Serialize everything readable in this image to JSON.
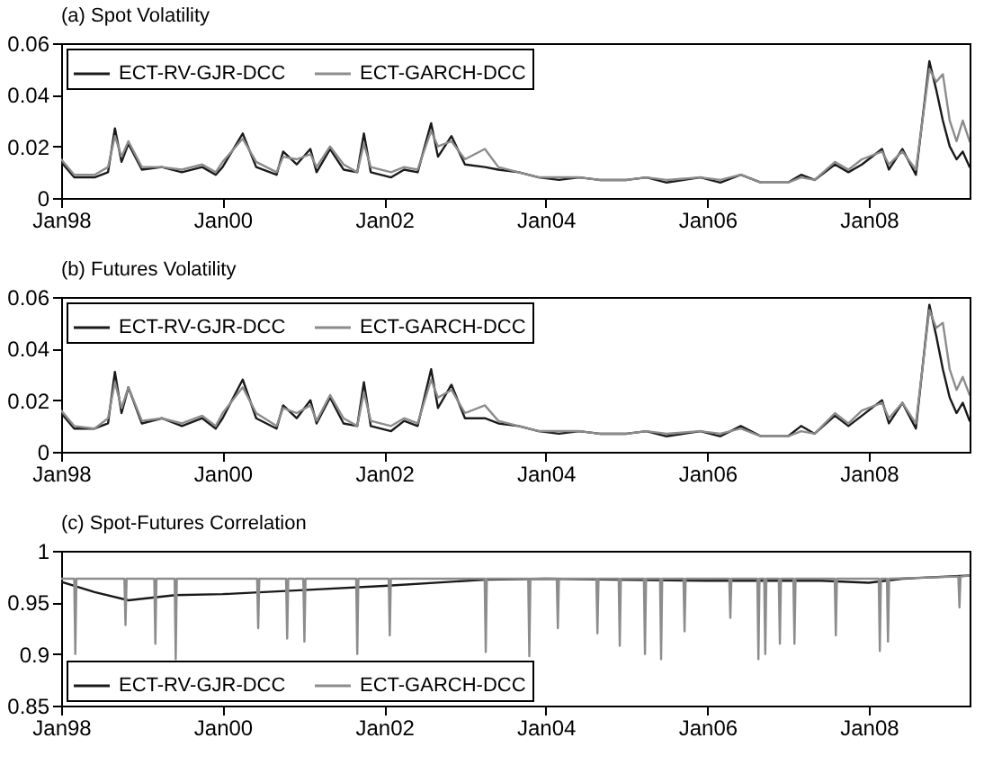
{
  "chart_data": [
    {
      "type": "line",
      "title": "(a) Spot Volatility",
      "legend": "top left",
      "x": [
        "1998-01",
        "1998-03",
        "1998-06",
        "1998-08",
        "1998-09",
        "1998-10",
        "1998-11",
        "1999-01",
        "1999-04",
        "1999-07",
        "1999-10",
        "1999-12",
        "2000-01",
        "2000-04",
        "2000-06",
        "2000-09",
        "2000-10",
        "2000-12",
        "2001-02",
        "2001-03",
        "2001-05",
        "2001-07",
        "2001-09",
        "2001-10",
        "2001-11",
        "2002-02",
        "2002-04",
        "2002-06",
        "2002-08",
        "2002-09",
        "2002-11",
        "2003-01",
        "2003-04",
        "2003-06",
        "2003-09",
        "2003-12",
        "2004-03",
        "2004-06",
        "2004-09",
        "2005-01",
        "2005-04",
        "2005-07",
        "2005-12",
        "2006-03",
        "2006-06",
        "2006-09",
        "2007-01",
        "2007-03",
        "2007-05",
        "2007-08",
        "2007-10",
        "2007-12",
        "2008-03",
        "2008-04",
        "2008-06",
        "2008-08",
        "2008-10",
        "2008-11",
        "2008-12",
        "2009-01",
        "2009-02",
        "2009-03",
        "2009-04"
      ],
      "series": [
        {
          "name": "ECT-RV-GJR-DCC",
          "color": "#1a1a1a",
          "values": [
            0.014,
            0.008,
            0.008,
            0.01,
            0.027,
            0.014,
            0.021,
            0.011,
            0.012,
            0.01,
            0.012,
            0.009,
            0.012,
            0.025,
            0.012,
            0.009,
            0.018,
            0.013,
            0.019,
            0.01,
            0.019,
            0.011,
            0.01,
            0.025,
            0.01,
            0.008,
            0.011,
            0.01,
            0.029,
            0.016,
            0.024,
            0.013,
            0.012,
            0.011,
            0.01,
            0.008,
            0.007,
            0.008,
            0.007,
            0.007,
            0.008,
            0.006,
            0.008,
            0.006,
            0.009,
            0.006,
            0.006,
            0.009,
            0.007,
            0.013,
            0.01,
            0.013,
            0.019,
            0.011,
            0.019,
            0.009,
            0.053,
            0.042,
            0.03,
            0.02,
            0.015,
            0.018,
            0.012
          ]
        },
        {
          "name": "ECT-GARCH-DCC",
          "color": "#8c8c8c",
          "values": [
            0.015,
            0.009,
            0.009,
            0.012,
            0.024,
            0.016,
            0.022,
            0.012,
            0.012,
            0.011,
            0.013,
            0.01,
            0.014,
            0.023,
            0.014,
            0.01,
            0.016,
            0.015,
            0.017,
            0.012,
            0.02,
            0.013,
            0.01,
            0.021,
            0.012,
            0.01,
            0.012,
            0.011,
            0.026,
            0.02,
            0.022,
            0.015,
            0.019,
            0.012,
            0.01,
            0.008,
            0.008,
            0.008,
            0.007,
            0.007,
            0.008,
            0.007,
            0.008,
            0.007,
            0.009,
            0.006,
            0.006,
            0.008,
            0.007,
            0.014,
            0.011,
            0.015,
            0.018,
            0.013,
            0.018,
            0.011,
            0.05,
            0.045,
            0.048,
            0.03,
            0.022,
            0.03,
            0.022
          ]
        }
      ],
      "xlim": [
        "1998-01",
        "2009-04"
      ],
      "xticks": [
        {
          "value": "1998-01",
          "label": "Jan98"
        },
        {
          "value": "2000-01",
          "label": "Jan00"
        },
        {
          "value": "2002-01",
          "label": "Jan02"
        },
        {
          "value": "2004-01",
          "label": "Jan04"
        },
        {
          "value": "2006-01",
          "label": "Jan06"
        },
        {
          "value": "2008-01",
          "label": "Jan08"
        }
      ],
      "ylim": [
        0,
        0.06
      ],
      "yticks": [
        0,
        0.02,
        0.04,
        0.06
      ]
    },
    {
      "type": "line",
      "title": "(b) Futures Volatility",
      "legend": "top left",
      "x": [
        "1998-01",
        "1998-03",
        "1998-06",
        "1998-08",
        "1998-09",
        "1998-10",
        "1998-11",
        "1999-01",
        "1999-04",
        "1999-07",
        "1999-10",
        "1999-12",
        "2000-01",
        "2000-04",
        "2000-06",
        "2000-09",
        "2000-10",
        "2000-12",
        "2001-02",
        "2001-03",
        "2001-05",
        "2001-07",
        "2001-09",
        "2001-10",
        "2001-11",
        "2002-02",
        "2002-04",
        "2002-06",
        "2002-08",
        "2002-09",
        "2002-11",
        "2003-01",
        "2003-04",
        "2003-06",
        "2003-09",
        "2003-12",
        "2004-03",
        "2004-06",
        "2004-09",
        "2005-01",
        "2005-04",
        "2005-07",
        "2005-12",
        "2006-03",
        "2006-06",
        "2006-09",
        "2007-01",
        "2007-03",
        "2007-05",
        "2007-08",
        "2007-10",
        "2007-12",
        "2008-03",
        "2008-04",
        "2008-06",
        "2008-08",
        "2008-10",
        "2008-11",
        "2008-12",
        "2009-01",
        "2009-02",
        "2009-03",
        "2009-04"
      ],
      "series": [
        {
          "name": "ECT-RV-GJR-DCC",
          "color": "#1a1a1a",
          "values": [
            0.015,
            0.009,
            0.009,
            0.011,
            0.031,
            0.015,
            0.025,
            0.011,
            0.013,
            0.01,
            0.013,
            0.009,
            0.013,
            0.028,
            0.013,
            0.009,
            0.018,
            0.013,
            0.02,
            0.011,
            0.021,
            0.011,
            0.01,
            0.027,
            0.01,
            0.008,
            0.012,
            0.01,
            0.032,
            0.017,
            0.026,
            0.013,
            0.013,
            0.011,
            0.01,
            0.008,
            0.007,
            0.008,
            0.007,
            0.007,
            0.008,
            0.006,
            0.008,
            0.006,
            0.01,
            0.006,
            0.006,
            0.01,
            0.007,
            0.014,
            0.01,
            0.014,
            0.02,
            0.011,
            0.019,
            0.009,
            0.057,
            0.045,
            0.032,
            0.021,
            0.015,
            0.019,
            0.012
          ]
        },
        {
          "name": "ECT-GARCH-DCC",
          "color": "#8c8c8c",
          "values": [
            0.016,
            0.01,
            0.009,
            0.013,
            0.027,
            0.017,
            0.025,
            0.012,
            0.013,
            0.011,
            0.014,
            0.01,
            0.015,
            0.025,
            0.015,
            0.01,
            0.017,
            0.015,
            0.018,
            0.012,
            0.022,
            0.013,
            0.01,
            0.023,
            0.012,
            0.01,
            0.013,
            0.011,
            0.028,
            0.021,
            0.024,
            0.015,
            0.018,
            0.012,
            0.01,
            0.008,
            0.008,
            0.008,
            0.007,
            0.007,
            0.008,
            0.007,
            0.008,
            0.007,
            0.009,
            0.006,
            0.006,
            0.008,
            0.007,
            0.015,
            0.011,
            0.016,
            0.019,
            0.013,
            0.019,
            0.011,
            0.055,
            0.048,
            0.05,
            0.032,
            0.024,
            0.029,
            0.022
          ]
        }
      ],
      "xlim": [
        "1998-01",
        "2009-04"
      ],
      "xticks": [
        {
          "value": "1998-01",
          "label": "Jan98"
        },
        {
          "value": "2000-01",
          "label": "Jan00"
        },
        {
          "value": "2002-01",
          "label": "Jan02"
        },
        {
          "value": "2004-01",
          "label": "Jan04"
        },
        {
          "value": "2006-01",
          "label": "Jan06"
        },
        {
          "value": "2008-01",
          "label": "Jan08"
        }
      ],
      "ylim": [
        0,
        0.06
      ],
      "yticks": [
        0,
        0.02,
        0.04,
        0.06
      ]
    },
    {
      "type": "line",
      "title": "(c) Spot-Futures Correlation",
      "legend": "bottom left",
      "series": [
        {
          "name": "ECT-RV-GJR-DCC",
          "color": "#1a1a1a",
          "x": [
            "1998-01",
            "1998-06",
            "1998-11",
            "1999-06",
            "2000-01",
            "2001-01",
            "2002-01",
            "2003-04",
            "2004-01",
            "2006-01",
            "2007-06",
            "2008-01",
            "2008-06",
            "2009-04"
          ],
          "values": [
            0.97,
            0.96,
            0.952,
            0.957,
            0.958,
            0.962,
            0.966,
            0.972,
            0.973,
            0.971,
            0.971,
            0.969,
            0.973,
            0.976
          ]
        },
        {
          "name": "ECT-GARCH-DCC",
          "color": "#8c8c8c",
          "x": [
            "1998-01-01",
            "1998-03-01",
            "1998-03-06",
            "1998-03-11",
            "1998-10-14",
            "1998-10-19",
            "1998-10-24",
            "1999-02-26",
            "1999-03-03",
            "1999-03-08",
            "1999-05-29",
            "1999-06-03",
            "1999-06-08",
            "2000-06-05",
            "2000-06-10",
            "2000-06-15",
            "2000-10-14",
            "2000-10-19",
            "2000-10-24",
            "2000-12-31",
            "2001-01-05",
            "2001-01-10",
            "2001-08-27",
            "2001-09-01",
            "2001-09-06",
            "2002-01-21",
            "2002-01-26",
            "2002-01-31",
            "2003-03-31",
            "2003-04-05",
            "2003-04-10",
            "2003-10-14",
            "2003-10-19",
            "2003-10-24",
            "2004-02-20",
            "2004-02-25",
            "2004-03-01",
            "2004-08-17",
            "2004-08-22",
            "2004-08-27",
            "2004-11-26",
            "2004-12-01",
            "2004-12-06",
            "2005-03-20",
            "2005-03-25",
            "2005-03-30",
            "2005-06-01",
            "2005-06-06",
            "2005-06-11",
            "2005-09-15",
            "2005-09-20",
            "2005-09-25",
            "2006-04-10",
            "2006-04-15",
            "2006-04-20",
            "2006-08-15",
            "2006-08-20",
            "2006-08-25",
            "2006-09-15",
            "2006-09-20",
            "2006-09-25",
            "2006-11-20",
            "2006-11-25",
            "2006-11-30",
            "2007-01-25",
            "2007-01-30",
            "2007-02-04",
            "2007-07-31",
            "2007-08-05",
            "2007-08-10",
            "2008-02-15",
            "2008-02-20",
            "2008-02-25",
            "2008-03-23",
            "2008-03-28",
            "2008-04-02",
            "2009-02-09",
            "2009-02-14",
            "2009-02-19",
            "2009-04-01"
          ],
          "values": [
            0.973,
            0.973,
            0.9,
            0.973,
            0.973,
            0.928,
            0.973,
            0.973,
            0.91,
            0.973,
            0.973,
            0.895,
            0.973,
            0.973,
            0.925,
            0.973,
            0.973,
            0.915,
            0.973,
            0.973,
            0.912,
            0.973,
            0.973,
            0.9,
            0.973,
            0.973,
            0.918,
            0.973,
            0.973,
            0.902,
            0.973,
            0.973,
            0.898,
            0.973,
            0.973,
            0.925,
            0.973,
            0.973,
            0.92,
            0.973,
            0.973,
            0.908,
            0.973,
            0.973,
            0.9,
            0.973,
            0.973,
            0.895,
            0.973,
            0.973,
            0.922,
            0.973,
            0.973,
            0.935,
            0.973,
            0.973,
            0.895,
            0.973,
            0.973,
            0.9,
            0.973,
            0.973,
            0.91,
            0.973,
            0.973,
            0.91,
            0.973,
            0.973,
            0.918,
            0.973,
            0.973,
            0.903,
            0.973,
            0.973,
            0.912,
            0.973,
            0.975,
            0.945,
            0.975,
            0.976
          ]
        }
      ],
      "xlim": [
        "1998-01",
        "2009-04"
      ],
      "xticks": [
        {
          "value": "1998-01",
          "label": "Jan98"
        },
        {
          "value": "2000-01",
          "label": "Jan00"
        },
        {
          "value": "2002-01",
          "label": "Jan02"
        },
        {
          "value": "2004-01",
          "label": "Jan04"
        },
        {
          "value": "2006-01",
          "label": "Jan06"
        },
        {
          "value": "2008-01",
          "label": "Jan08"
        }
      ],
      "ylim": [
        0.85,
        1
      ],
      "yticks": [
        0.85,
        0.9,
        0.95,
        1
      ]
    }
  ]
}
